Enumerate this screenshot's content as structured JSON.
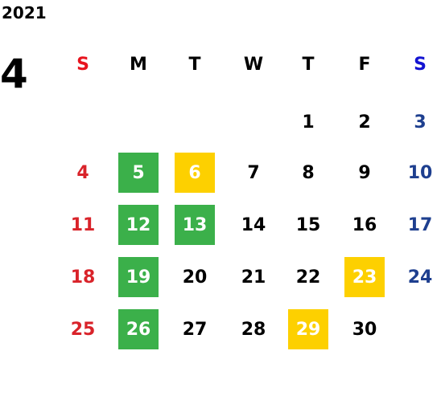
{
  "year": "2021",
  "month": "4",
  "weekdays": [
    "S",
    "M",
    "T",
    "W",
    "T",
    "F",
    "S"
  ],
  "header_colors": [
    "#e8141e",
    "#000000",
    "#000000",
    "#000000",
    "#000000",
    "#000000",
    "#1414d2"
  ],
  "day_colors": [
    "#d9232a",
    "#000000",
    "#000000",
    "#000000",
    "#000000",
    "#000000",
    "#1e3f8f"
  ],
  "weeks": [
    [
      null,
      null,
      null,
      null,
      1,
      2,
      3
    ],
    [
      4,
      {
        "day": 5,
        "fill": "#3bb04a"
      },
      {
        "day": 6,
        "fill": "#fdd000"
      },
      7,
      8,
      9,
      10
    ],
    [
      11,
      {
        "day": 12,
        "fill": "#3bb04a"
      },
      {
        "day": 13,
        "fill": "#3bb04a"
      },
      14,
      15,
      16,
      17
    ],
    [
      18,
      {
        "day": 19,
        "fill": "#3bb04a"
      },
      20,
      21,
      22,
      {
        "day": 23,
        "fill": "#fdd000"
      },
      24
    ],
    [
      25,
      {
        "day": 26,
        "fill": "#3bb04a"
      },
      27,
      28,
      {
        "day": 29,
        "fill": "#fdd000"
      },
      30,
      null
    ]
  ]
}
